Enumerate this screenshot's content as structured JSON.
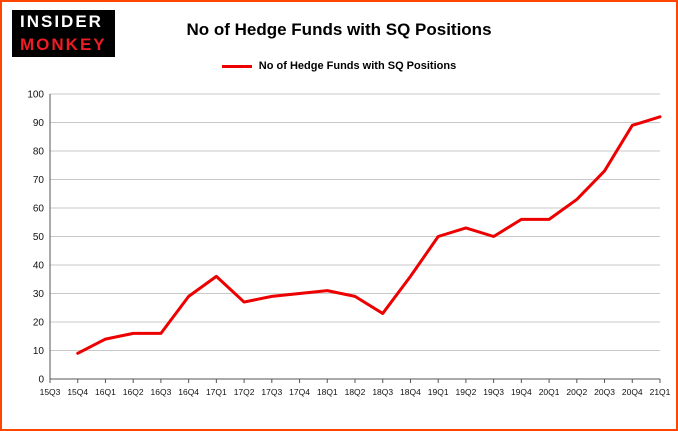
{
  "logo": {
    "line1": "INSIDER",
    "line2": "MONKEY"
  },
  "header": {
    "title": "No of Hedge Funds with SQ Positions"
  },
  "legend": {
    "label": "No of Hedge Funds with SQ Positions"
  },
  "colors": {
    "line": "#ed0000",
    "border": "#ff4500",
    "logo_bg": "#000000",
    "logo_insider": "#ffffff",
    "logo_monkey": "#ed1c24",
    "grid": "#c9c9c9",
    "axis": "#555555"
  },
  "chart_data": {
    "type": "line",
    "title": "No of Hedge Funds with SQ Positions",
    "legend": "No of Hedge Funds with SQ Positions",
    "categories": [
      "15Q3",
      "15Q4",
      "16Q1",
      "16Q2",
      "16Q3",
      "16Q4",
      "17Q1",
      "17Q2",
      "17Q3",
      "17Q4",
      "18Q1",
      "18Q2",
      "18Q3",
      "18Q4",
      "19Q1",
      "19Q2",
      "19Q3",
      "19Q4",
      "20Q1",
      "20Q2",
      "20Q3",
      "20Q4",
      "21Q1"
    ],
    "values": [
      null,
      9,
      14,
      16,
      16,
      29,
      36,
      27,
      29,
      30,
      31,
      29,
      23,
      36,
      50,
      53,
      50,
      56,
      56,
      63,
      73,
      89,
      92
    ],
    "ylim": [
      0,
      100
    ],
    "ytick_step": 10,
    "grid": true,
    "line_color": "#ed0000",
    "legend_position": "top-center"
  }
}
